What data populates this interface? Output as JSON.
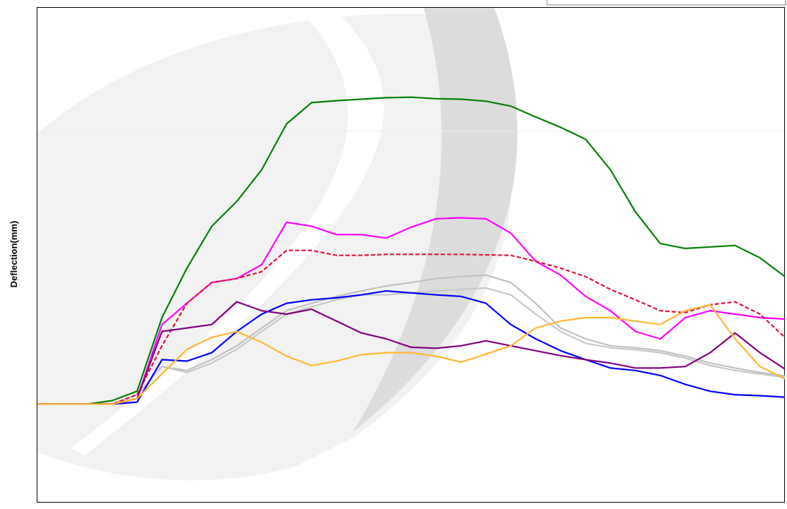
{
  "chart_data": {
    "type": "line",
    "y_label": "Deflection(mm)",
    "x": [
      0,
      1,
      2,
      3,
      4,
      5,
      6,
      7,
      8,
      9,
      10,
      11,
      12,
      13,
      14,
      15,
      16,
      17,
      18,
      19,
      20,
      21,
      22,
      23,
      24,
      25,
      26,
      27,
      28,
      29,
      30
    ],
    "xlim": [
      0,
      30
    ],
    "ylim": [
      0,
      100
    ],
    "grid": false,
    "series": [
      {
        "color": "#c0c0c0",
        "values": [
          19.8,
          19.8,
          19.8,
          19.8,
          21.7,
          27.4,
          26.6,
          28.8,
          31.6,
          35.2,
          38.7,
          40.2,
          41.6,
          42.7,
          43.7,
          44.4,
          45.2,
          45.6,
          45.9,
          44.4,
          40.2,
          35.2,
          33.0,
          31.6,
          31.2,
          30.6,
          29.5,
          28.1,
          27.1,
          26.2,
          25.5
        ]
      },
      {
        "color": "#c8c8c8",
        "values": [
          19.8,
          19.8,
          19.8,
          19.8,
          21.7,
          27.4,
          26.2,
          28.1,
          30.9,
          34.5,
          38.0,
          39.5,
          40.9,
          41.9,
          41.9,
          42.3,
          42.7,
          43.0,
          43.3,
          41.9,
          38.0,
          34.5,
          32.1,
          31.2,
          30.8,
          30.2,
          29.1,
          27.6,
          26.6,
          25.9,
          25.2
        ]
      },
      {
        "color": "#008000",
        "values": [
          19.8,
          19.8,
          19.8,
          20.5,
          22.4,
          37.3,
          47.3,
          55.8,
          60.8,
          67.2,
          76.5,
          80.8,
          81.2,
          81.5,
          81.8,
          81.9,
          81.6,
          81.5,
          81.1,
          80.1,
          77.9,
          75.8,
          73.4,
          67.2,
          58.7,
          52.3,
          51.3,
          51.6,
          51.9,
          49.4,
          45.6
        ]
      },
      {
        "color": "#ff00ff",
        "values": [
          19.8,
          19.8,
          19.8,
          19.8,
          20.9,
          35.9,
          40.2,
          44.4,
          45.2,
          48.0,
          56.6,
          55.8,
          54.1,
          54.1,
          53.4,
          55.6,
          57.3,
          57.5,
          57.3,
          54.4,
          48.7,
          45.9,
          41.6,
          38.7,
          34.5,
          33.0,
          37.3,
          38.7,
          38.0,
          37.3,
          37.0
        ]
      },
      {
        "color": "#dc143c",
        "dashed": true,
        "values": [
          19.8,
          19.8,
          19.8,
          19.8,
          21.7,
          31.6,
          40.2,
          44.4,
          45.2,
          46.6,
          50.9,
          50.9,
          49.9,
          49.9,
          50.1,
          50.1,
          50.1,
          50.1,
          50.0,
          49.9,
          48.7,
          47.3,
          45.6,
          43.0,
          40.9,
          38.7,
          38.3,
          39.9,
          40.5,
          38.0,
          33.3
        ]
      },
      {
        "color": "#0000ff",
        "values": [
          19.8,
          19.8,
          19.8,
          19.8,
          20.2,
          28.8,
          28.5,
          30.2,
          34.5,
          38.0,
          40.2,
          40.9,
          41.3,
          41.9,
          42.7,
          42.3,
          41.9,
          41.6,
          40.2,
          35.9,
          33.0,
          30.6,
          28.8,
          27.1,
          26.6,
          25.6,
          23.8,
          22.4,
          21.7,
          21.5,
          21.2
        ]
      },
      {
        "color": "#800080",
        "values": [
          19.8,
          19.8,
          19.8,
          19.8,
          20.9,
          34.5,
          35.2,
          35.9,
          40.5,
          38.7,
          38.0,
          39.0,
          36.6,
          34.2,
          33.0,
          31.3,
          31.1,
          31.6,
          32.6,
          31.6,
          30.6,
          29.6,
          28.8,
          28.1,
          27.1,
          27.1,
          27.4,
          30.2,
          34.2,
          30.2,
          26.9
        ]
      },
      {
        "color": "#ffb732",
        "values": [
          19.8,
          19.8,
          19.8,
          19.8,
          20.9,
          25.9,
          30.9,
          33.3,
          34.5,
          32.3,
          29.5,
          27.6,
          28.5,
          29.8,
          30.2,
          30.2,
          29.5,
          28.3,
          29.9,
          31.6,
          35.2,
          36.6,
          37.3,
          37.3,
          36.6,
          35.9,
          38.7,
          39.9,
          33.0,
          27.4,
          24.9
        ]
      }
    ]
  }
}
